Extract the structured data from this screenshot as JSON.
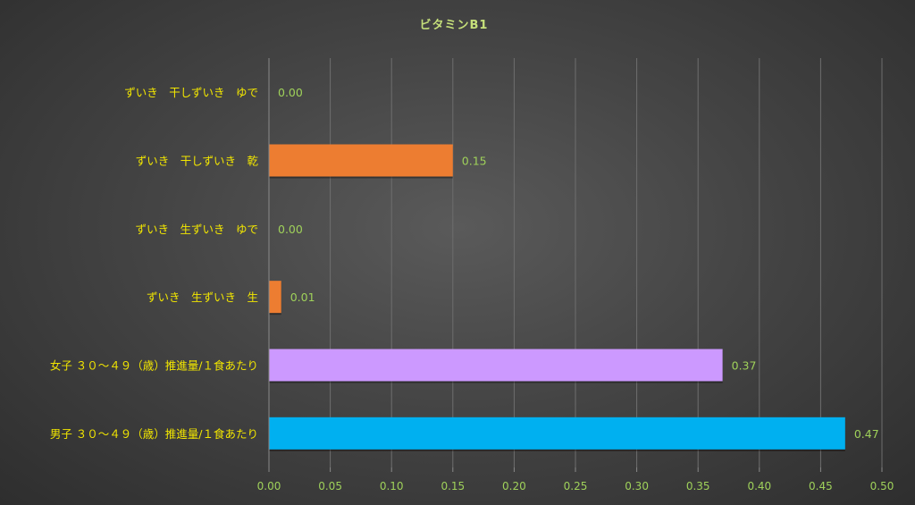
{
  "chart_data": {
    "type": "bar",
    "orientation": "horizontal",
    "title": "ビタミンB1",
    "categories": [
      "ずいき　干しずいき　ゆで",
      "ずいき　干しずいき　乾",
      "ずいき　生ずいき　ゆで",
      "ずいき　生ずいき　生",
      "女子 ３０～４９（歳）推進量/１食あたり",
      "男子 ３０～４９（歳）推進量/１食あたり"
    ],
    "values": [
      0.0,
      0.15,
      0.0,
      0.01,
      0.37,
      0.47
    ],
    "value_labels": [
      "0.00",
      "0.15",
      "0.00",
      "0.01",
      "0.37",
      "0.47"
    ],
    "bar_colors": [
      "#ed7d31",
      "#ed7d31",
      "#ed7d31",
      "#ed7d31",
      "#cc99ff",
      "#00b0f0"
    ],
    "xlim": [
      0,
      0.5
    ],
    "xticks": [
      "0.00",
      "0.05",
      "0.10",
      "0.15",
      "0.20",
      "0.25",
      "0.30",
      "0.35",
      "0.40",
      "0.45",
      "0.50"
    ],
    "grid": true,
    "legend": "none"
  }
}
